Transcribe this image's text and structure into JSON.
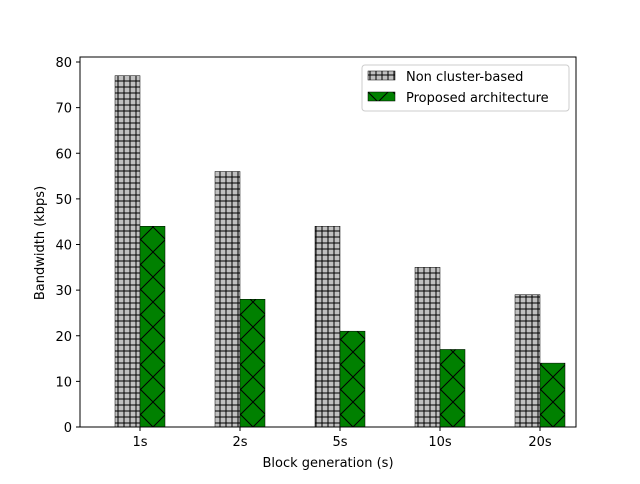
{
  "chart_data": {
    "type": "bar",
    "title": "",
    "xlabel": "Block generation (s)",
    "ylabel": "Bandwidth (kbps)",
    "categories": [
      "1s",
      "2s",
      "5s",
      "10s",
      "20s"
    ],
    "ylim": [
      0,
      80
    ],
    "yticks": [
      0,
      10,
      20,
      30,
      40,
      50,
      60,
      70,
      80
    ],
    "grid": false,
    "legend_position": "top-right",
    "series": [
      {
        "name": "Non cluster-based",
        "values": [
          77,
          56,
          44,
          35,
          29
        ],
        "color": "#c0c0c0",
        "hatch": "plus-grid"
      },
      {
        "name": "Proposed architecture",
        "values": [
          44,
          28,
          21,
          17,
          14
        ],
        "color": "#008000",
        "hatch": "cross-x"
      }
    ]
  }
}
